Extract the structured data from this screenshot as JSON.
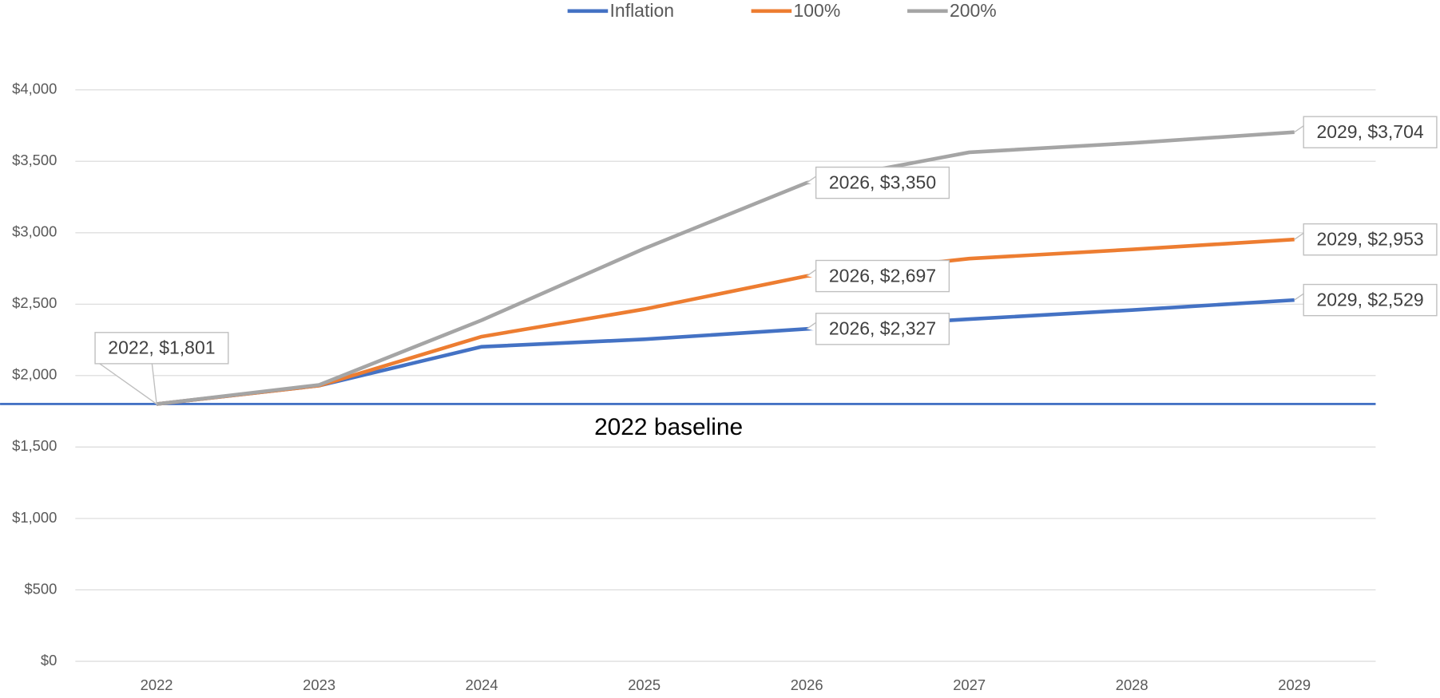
{
  "chart_data": {
    "type": "line",
    "categories": [
      "2022",
      "2023",
      "2024",
      "2025",
      "2026",
      "2027",
      "2028",
      "2029"
    ],
    "series": [
      {
        "name": "Inflation",
        "color": "#4472c4",
        "values": [
          1801,
          1930,
          2202,
          2254,
          2327,
          2395,
          2459,
          2529
        ],
        "value_labels": [
          "2022, $1,801",
          null,
          null,
          null,
          "2026, $2,327",
          null,
          null,
          "2029, $2,529"
        ]
      },
      {
        "name": "100%",
        "color": "#ed7d31",
        "values": [
          1801,
          1930,
          2273,
          2465,
          2697,
          2819,
          2883,
          2953
        ],
        "value_labels": [
          null,
          null,
          null,
          null,
          "2026, $2,697",
          null,
          null,
          "2029, $2,953"
        ]
      },
      {
        "name": "200%",
        "color": "#a5a5a5",
        "values": [
          1801,
          1935,
          2388,
          2889,
          3350,
          3563,
          3628,
          3704
        ],
        "value_labels": [
          null,
          null,
          null,
          null,
          "2026, $3,350",
          null,
          null,
          "2029, $3,704"
        ]
      }
    ],
    "baseline": {
      "label": "2022 baseline",
      "value": 1801,
      "color": "#4472c4"
    },
    "ylim": [
      0,
      4000
    ],
    "yticks": [
      {
        "value": 0,
        "label": "$0"
      },
      {
        "value": 500,
        "label": "$500"
      },
      {
        "value": 1000,
        "label": "$1,000"
      },
      {
        "value": 1500,
        "label": "$1,500"
      },
      {
        "value": 2000,
        "label": "$2,000"
      },
      {
        "value": 2500,
        "label": "$2,500"
      },
      {
        "value": 3000,
        "label": "$3,000"
      },
      {
        "value": 3500,
        "label": "$3,500"
      },
      {
        "value": 4000,
        "label": "$4,000"
      }
    ],
    "grid": true,
    "legend": "top"
  }
}
